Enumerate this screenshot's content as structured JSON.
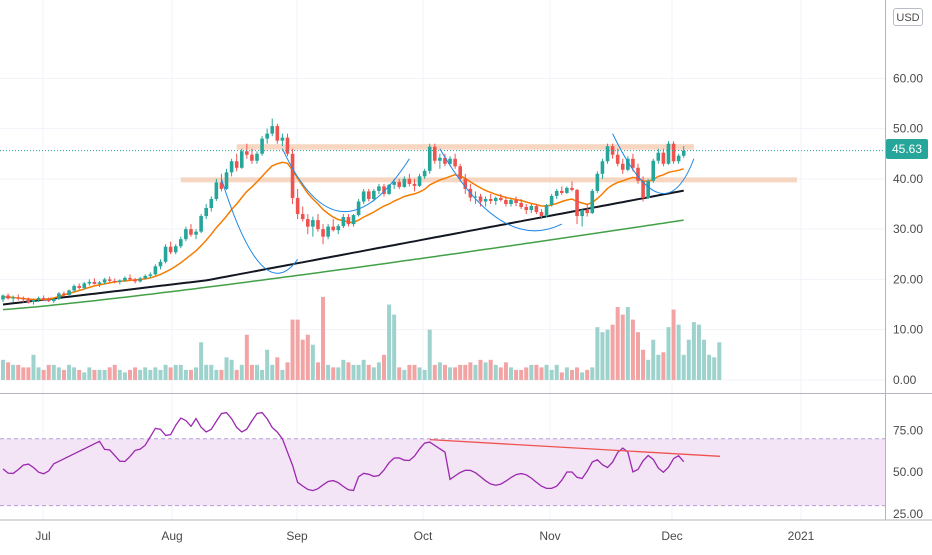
{
  "chart_data": {
    "type": "candlestick",
    "currency": "USD",
    "last_price": "45.63",
    "price_axis": {
      "ticks": [
        "60.00",
        "50.00",
        "40.00",
        "30.00",
        "20.00",
        "10.00",
        "0.00"
      ],
      "range": [
        -2,
        72
      ]
    },
    "rsi_axis": {
      "ticks": [
        "75.00",
        "50.00",
        "25.00"
      ],
      "range": [
        22,
        95
      ],
      "band": [
        30,
        70
      ]
    },
    "x_axis": {
      "ticks": [
        "Jul",
        "Aug",
        "Sep",
        "Oct",
        "Nov",
        "Dec",
        "2021"
      ]
    },
    "colors": {
      "up": "#26a69a",
      "down": "#ef5350",
      "vol_up": "#9ed3cd",
      "vol_down": "#f2a3a3",
      "ma_fast": "#f57c00",
      "ma_mid": "#131722",
      "ma_slow": "#43a047",
      "rsi": "#9c27b0",
      "rsi_band": "#f3e5f5",
      "resistance": "#f4c6a8",
      "trend": "#ef5350",
      "arc": "#1e88e5"
    },
    "candles": [
      [
        16,
        17,
        15.5,
        16.8
      ],
      [
        16.8,
        17.2,
        16,
        16.2
      ],
      [
        16.2,
        16.8,
        15.5,
        16.4
      ],
      [
        16.4,
        17,
        15.8,
        16.2
      ],
      [
        16.2,
        16.6,
        15.4,
        16
      ],
      [
        16,
        16.4,
        15.2,
        15.5
      ],
      [
        15.5,
        16.2,
        15,
        15.9
      ],
      [
        15.9,
        16.6,
        15.5,
        16.3
      ],
      [
        16.3,
        16.8,
        15.8,
        16
      ],
      [
        16,
        16.4,
        15.5,
        15.7
      ],
      [
        15.7,
        16.3,
        15.3,
        16.1
      ],
      [
        16.1,
        17.5,
        15.9,
        17.2
      ],
      [
        17.2,
        17.6,
        16.6,
        16.9
      ],
      [
        16.9,
        18,
        16.7,
        17.8
      ],
      [
        17.8,
        19,
        17.5,
        18.7
      ],
      [
        18.7,
        19.2,
        18,
        18.3
      ],
      [
        18.3,
        19.5,
        18,
        19.2
      ],
      [
        19.2,
        20,
        18.8,
        19.5
      ],
      [
        19.5,
        20.2,
        19,
        19.1
      ],
      [
        19.1,
        19.7,
        18.5,
        19.4
      ],
      [
        19.4,
        20.3,
        19,
        20
      ],
      [
        20,
        20.6,
        19.4,
        19.7
      ],
      [
        19.7,
        20.2,
        19.2,
        19.5
      ],
      [
        19.5,
        20,
        19,
        19.8
      ],
      [
        19.8,
        20.6,
        19.5,
        20.3
      ],
      [
        20.3,
        21,
        19.8,
        20
      ],
      [
        20,
        20.3,
        19.2,
        19.6
      ],
      [
        19.6,
        20.5,
        19.4,
        20.2
      ],
      [
        20.2,
        21,
        20,
        20.7
      ],
      [
        20.7,
        21.4,
        20.3,
        21
      ],
      [
        21,
        23,
        20.8,
        22.6
      ],
      [
        22.6,
        24,
        22,
        23.5
      ],
      [
        23.5,
        27,
        23.2,
        26.5
      ],
      [
        26.5,
        27.5,
        25,
        25.4
      ],
      [
        25.4,
        27,
        25,
        26.6
      ],
      [
        26.6,
        28.5,
        26.2,
        28
      ],
      [
        28,
        30.5,
        27.6,
        30
      ],
      [
        30,
        31,
        28.5,
        28.9
      ],
      [
        28.9,
        30,
        28,
        29.5
      ],
      [
        29.5,
        33,
        29.2,
        32.6
      ],
      [
        32.6,
        35,
        32,
        34.2
      ],
      [
        34.2,
        36.5,
        33.5,
        36
      ],
      [
        36,
        40,
        35.6,
        39.3
      ],
      [
        39.3,
        41,
        37.5,
        38
      ],
      [
        38,
        42,
        37.8,
        41.3
      ],
      [
        41.3,
        44,
        40.5,
        43.5
      ],
      [
        43.5,
        45,
        41.5,
        42.2
      ],
      [
        42.2,
        46,
        42,
        45.5
      ],
      [
        45.5,
        47,
        44,
        44.8
      ],
      [
        44.8,
        46,
        43,
        43.6
      ],
      [
        43.6,
        45.5,
        43,
        45
      ],
      [
        45,
        48.5,
        44.6,
        48
      ],
      [
        48,
        50,
        47,
        49
      ],
      [
        49,
        52,
        48.5,
        50.5
      ],
      [
        50.5,
        51,
        47,
        47.6
      ],
      [
        47.6,
        49,
        46.5,
        48.2
      ],
      [
        48.2,
        49,
        44.5,
        45
      ],
      [
        45,
        46,
        35,
        36.2
      ],
      [
        36.2,
        38,
        32,
        33
      ],
      [
        33,
        34.5,
        31.5,
        32
      ],
      [
        32,
        33,
        29,
        30.5
      ],
      [
        30.5,
        32.5,
        28.5,
        31.8
      ],
      [
        31.8,
        33,
        29.5,
        30
      ],
      [
        30,
        31,
        27,
        28.5
      ],
      [
        28.5,
        31,
        28,
        30.5
      ],
      [
        30.5,
        32,
        29.5,
        29.8
      ],
      [
        29.8,
        31,
        29,
        30.6
      ],
      [
        30.6,
        33,
        30.2,
        32.4
      ],
      [
        32.4,
        33,
        30.5,
        31
      ],
      [
        31,
        33,
        30.5,
        32.8
      ],
      [
        32.8,
        36,
        32.5,
        35.5
      ],
      [
        35.5,
        38,
        35,
        37.5
      ],
      [
        37.5,
        38,
        35.5,
        36
      ],
      [
        36,
        38,
        35.5,
        37.6
      ],
      [
        37.6,
        39,
        37,
        38.5
      ],
      [
        38.5,
        39,
        36.5,
        37
      ],
      [
        37,
        39,
        36.8,
        38.8
      ],
      [
        38.8,
        40,
        38,
        39.4
      ],
      [
        39.4,
        40,
        38,
        38.4
      ],
      [
        38.4,
        40.5,
        38.2,
        40
      ],
      [
        40,
        41,
        38.5,
        39
      ],
      [
        39,
        40,
        37.5,
        38.6
      ],
      [
        38.6,
        41,
        38.4,
        40.5
      ],
      [
        40.5,
        42,
        40,
        41.6
      ],
      [
        41.6,
        47,
        41,
        46.4
      ],
      [
        46.4,
        47,
        43,
        43.6
      ],
      [
        43.6,
        45,
        42,
        44.2
      ],
      [
        44.2,
        45,
        42.5,
        43
      ],
      [
        43,
        44.5,
        42.5,
        44
      ],
      [
        44,
        45,
        42,
        42.5
      ],
      [
        42.5,
        43,
        39.5,
        40
      ],
      [
        40,
        41,
        37,
        38
      ],
      [
        38,
        39,
        35.5,
        36.3
      ],
      [
        36.3,
        37.5,
        35,
        36.5
      ],
      [
        36.5,
        37,
        34.5,
        35.5
      ],
      [
        35.5,
        36.5,
        34.5,
        36
      ],
      [
        36,
        37,
        35,
        35.6
      ],
      [
        35.6,
        36.5,
        34.8,
        36.2
      ],
      [
        36.2,
        37,
        35.5,
        35.8
      ],
      [
        35.8,
        36.5,
        34.5,
        35
      ],
      [
        35,
        36,
        34.5,
        35.8
      ],
      [
        35.8,
        36.5,
        34.6,
        35.2
      ],
      [
        35.2,
        36,
        34,
        34.4
      ],
      [
        34.4,
        35,
        33,
        33.8
      ],
      [
        33.8,
        35,
        33.2,
        34.6
      ],
      [
        34.6,
        35,
        33,
        33.4
      ],
      [
        33.4,
        34,
        32,
        32.6
      ],
      [
        32.6,
        35,
        32.3,
        34.8
      ],
      [
        34.8,
        37,
        34.5,
        36.6
      ],
      [
        36.6,
        38,
        36,
        37.6
      ],
      [
        37.6,
        38.5,
        36.8,
        37.2
      ],
      [
        37.2,
        38.5,
        37,
        38.2
      ],
      [
        38.2,
        39.5,
        37.5,
        37.8
      ],
      [
        37.8,
        38,
        31,
        32.6
      ],
      [
        32.6,
        34,
        30.5,
        33.8
      ],
      [
        33.8,
        35,
        32.5,
        33.2
      ],
      [
        33.2,
        38,
        33,
        37.6
      ],
      [
        37.6,
        41.5,
        37.2,
        41
      ],
      [
        41,
        44,
        40,
        43.5
      ],
      [
        43.5,
        47,
        43,
        46.5
      ],
      [
        46.5,
        47,
        44,
        44.8
      ],
      [
        44.8,
        46,
        42.5,
        43
      ],
      [
        43,
        44,
        41,
        41.8
      ],
      [
        41.8,
        44.5,
        41.5,
        44
      ],
      [
        44,
        45,
        41.5,
        42.2
      ],
      [
        42.2,
        43,
        39,
        39.6
      ],
      [
        39.6,
        40.5,
        35.5,
        36.2
      ],
      [
        36.2,
        40,
        36,
        39.6
      ],
      [
        39.6,
        44,
        39.2,
        43.6
      ],
      [
        43.6,
        46,
        43,
        45.2
      ],
      [
        45.2,
        46,
        42.5,
        43
      ],
      [
        43,
        47.5,
        42.8,
        47
      ],
      [
        47,
        47.5,
        43,
        43.5
      ],
      [
        43.5,
        45,
        43,
        44.6
      ],
      [
        44.6,
        46.5,
        44.2,
        45.63
      ]
    ],
    "volumes": [
      4,
      3.5,
      3,
      3,
      2.5,
      2.5,
      5,
      2.5,
      2,
      3,
      3,
      2.5,
      2,
      3,
      2.5,
      2,
      1.5,
      2.5,
      2,
      2,
      2,
      2.5,
      3,
      2,
      1.5,
      2,
      2.5,
      2,
      2.5,
      2,
      2.5,
      2,
      3,
      2.5,
      3,
      3,
      2,
      2,
      2.5,
      7.5,
      3,
      3,
      2,
      2,
      4.5,
      4,
      2,
      3,
      9,
      3,
      3,
      2,
      6,
      3,
      4.5,
      2,
      3.5,
      12,
      12,
      8,
      9,
      7,
      3.5,
      16.5,
      3,
      2.5,
      2.5,
      4,
      3.5,
      3,
      3,
      4,
      3,
      2.5,
      3.5,
      5,
      15,
      13,
      2.5,
      2,
      3,
      3,
      2.5,
      2,
      10,
      3,
      3.5,
      3,
      2.5,
      2.5,
      3,
      3,
      3.5,
      3,
      4,
      3.5,
      4,
      3,
      2.5,
      3.5,
      2.5,
      2,
      2,
      2.5,
      3,
      3,
      2.5,
      3,
      2,
      3,
      1.5,
      2.5,
      2,
      2.5,
      1.5,
      2,
      2.5,
      10.5,
      9.5,
      10,
      11,
      14.5,
      13,
      14.5,
      12,
      9.5,
      6,
      4,
      8,
      5,
      5.5,
      10.5,
      14,
      11,
      5,
      8,
      11.5,
      11,
      8,
      5,
      4.5,
      7.5
    ],
    "ma_fast": [
      16.5,
      16.5,
      16.4,
      16.3,
      16.2,
      16.1,
      16,
      16,
      16,
      16.1,
      16.3,
      16.6,
      16.9,
      17.2,
      17.5,
      17.8,
      18.1,
      18.4,
      18.7,
      18.9,
      19.1,
      19.3,
      19.5,
      19.6,
      19.7,
      19.8,
      19.9,
      20,
      20.1,
      20.3,
      20.6,
      21,
      21.5,
      22,
      22.6,
      23.3,
      24.1,
      24.9,
      25.7,
      26.7,
      27.8,
      29,
      30.3,
      31.4,
      32.6,
      33.9,
      35,
      36.3,
      37.5,
      38.4,
      39.4,
      40.5,
      41.6,
      42.6,
      43,
      43.3,
      43.1,
      41.7,
      40.1,
      38.6,
      37.1,
      36,
      35,
      33.9,
      33.1,
      32.4,
      31.9,
      31.7,
      31.4,
      31.3,
      31.8,
      32.4,
      32.9,
      33.4,
      34,
      34.6,
      35,
      35.6,
      36,
      36.5,
      36.8,
      37,
      37.4,
      37.9,
      38.8,
      39.3,
      39.8,
      40.1,
      40.5,
      40.8,
      40.6,
      40.1,
      39.4,
      38.8,
      38.2,
      37.7,
      37.3,
      36.9,
      36.6,
      36.3,
      36.1,
      35.9,
      35.7,
      35.4,
      35.1,
      34.9,
      34.6,
      34.6,
      34.8,
      35.1,
      35.5,
      35.8,
      36,
      35.5,
      35.2,
      34.9,
      35.3,
      36.1,
      37,
      38.1,
      38.8,
      39.3,
      39.6,
      40,
      40.3,
      40.1,
      39.6,
      39.5,
      39.9,
      40.5,
      40.8,
      41.3,
      41.5,
      41.7,
      42
    ]
  }
}
